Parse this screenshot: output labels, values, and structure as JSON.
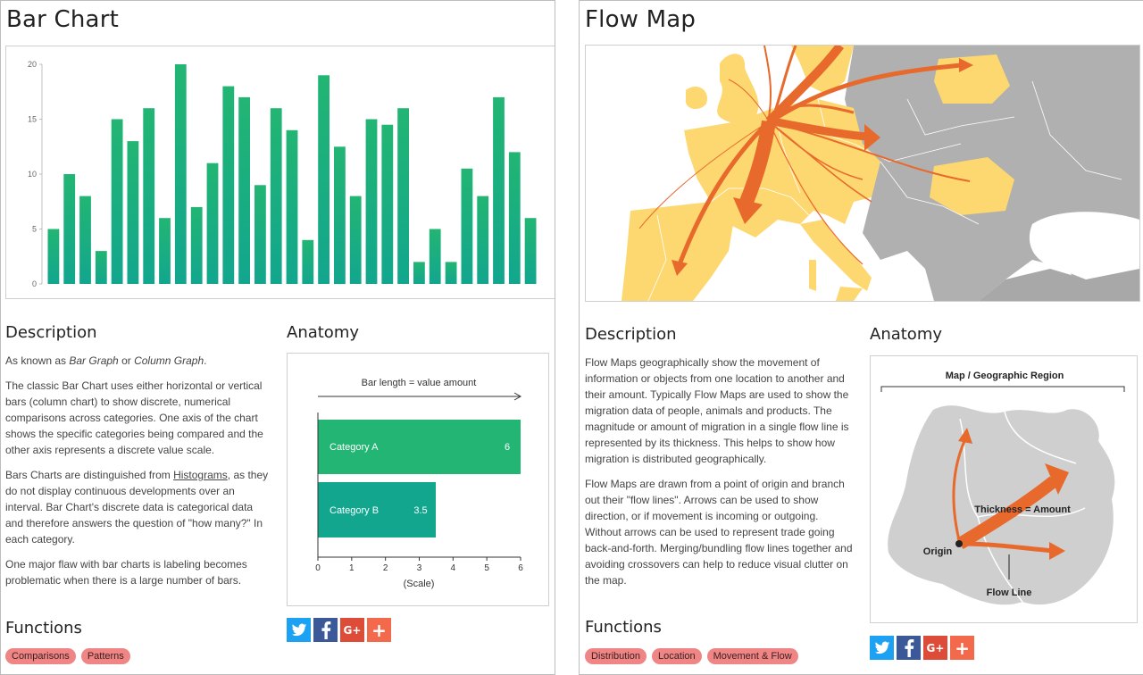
{
  "colors": {
    "bar_green": "#22b573",
    "bar_teal": "#12a68e",
    "map_yellow": "#fdd770",
    "map_gray": "#b0b0b0",
    "flow_orange": "#e8692c",
    "tag_pink": "#f08585"
  },
  "left": {
    "title": "Bar Chart",
    "description_heading": "Description",
    "anatomy_heading": "Anatomy",
    "functions_heading": "Functions",
    "desc": {
      "p1_pre": "As known as ",
      "p1_em1": "Bar Graph",
      "p1_mid": " or ",
      "p1_em2": "Column Graph",
      "p1_post": ".",
      "p2": "The classic Bar Chart uses either horizontal or vertical bars (column chart) to show discrete, numerical comparisons across categories. One axis of the chart shows the specific categories being compared and the other axis represents a discrete value scale.",
      "p3_pre": "Bars Charts are distinguished from ",
      "p3_link": "Histograms",
      "p3_post": ", as they do not display continuous developments over an interval. Bar Chart's discrete data is categorical data and therefore answers the question of \"how many?\" In each category.",
      "p4": "One major flaw with bar charts is labeling becomes problematic when there is a large number of bars."
    },
    "anatomy": {
      "header": "Bar length  =  value amount",
      "cat_a": "Category A",
      "val_a": "6",
      "cat_b": "Category B",
      "val_b": "3.5",
      "scale_label": "(Scale)",
      "ticks": [
        "0",
        "1",
        "2",
        "3",
        "4",
        "5",
        "6"
      ]
    },
    "tags": [
      "Comparisons",
      "Patterns"
    ]
  },
  "right": {
    "title": "Flow Map",
    "description_heading": "Description",
    "anatomy_heading": "Anatomy",
    "functions_heading": "Functions",
    "desc": {
      "p1": "Flow Maps geographically show the movement of information or objects from one location to another and their amount. Typically Flow Maps are used to show the migration data of people, animals and products. The magnitude or amount of migration in a single flow line is represented by its thickness. This helps to show how migration is distributed geographically.",
      "p2": "Flow Maps are drawn from a point of origin and branch out their \"flow lines\". Arrows can be used to show direction, or if movement is incoming or outgoing. Without arrows can be used to represent trade going back-and-forth. Merging/bundling flow lines together and avoiding crossovers can help to reduce visual clutter on the map."
    },
    "anatomy": {
      "header": "Map / Geographic Region",
      "thickness": "Thickness = Amount",
      "origin": "Origin",
      "flow_line": "Flow Line"
    },
    "tags": [
      "Distribution",
      "Location",
      "Movement & Flow"
    ]
  },
  "share": {
    "icons": [
      "twitter-icon",
      "facebook-icon",
      "google-plus-icon",
      "plus-icon"
    ],
    "gplus_label": "G+",
    "plus_label": "+"
  },
  "chart_data": {
    "type": "bar",
    "values": [
      5,
      10,
      8,
      3,
      15,
      13,
      16,
      6,
      20,
      7,
      11,
      18,
      17,
      9,
      16,
      14,
      4,
      19,
      12.5,
      8,
      15,
      14.5,
      16,
      2,
      5,
      2,
      10.5,
      8,
      17,
      12,
      6
    ],
    "ylim": [
      0,
      20
    ],
    "yticks": [
      0,
      5,
      10,
      15,
      20
    ],
    "grid": false
  }
}
